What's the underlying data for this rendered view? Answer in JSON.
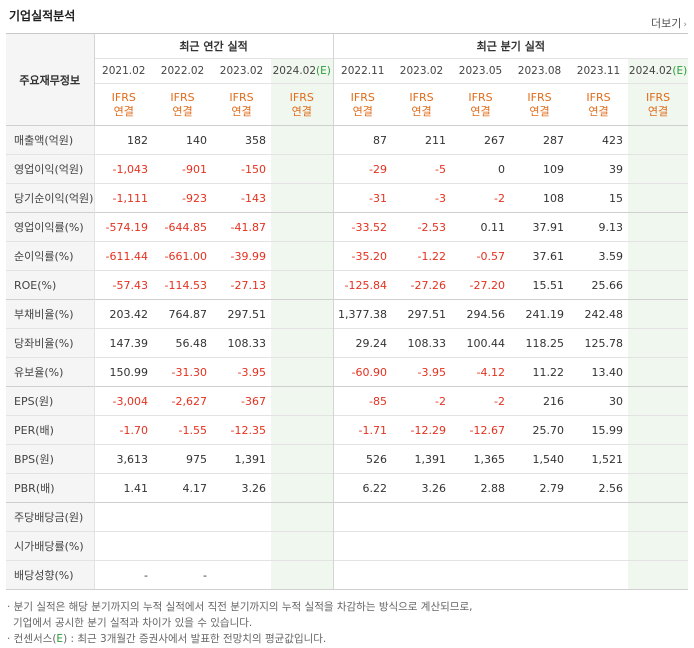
{
  "title": "기업실적분석",
  "more_label": "더보기",
  "header": {
    "row_label": "주요재무정보",
    "annual_label": "최근 연간 실적",
    "quarter_label": "최근 분기 실적",
    "annual_periods": [
      "2021.02",
      "2022.02",
      "2023.02",
      "2024.02"
    ],
    "quarter_periods": [
      "2022.11",
      "2023.02",
      "2023.05",
      "2023.08",
      "2023.11",
      "2024.02"
    ],
    "estimate_mark": "(E)",
    "ifrs_line1": "IFRS",
    "ifrs_line2": "연결"
  },
  "rows": [
    {
      "label": "매출액(억원)",
      "values": [
        "182",
        "140",
        "358",
        "",
        "87",
        "211",
        "267",
        "287",
        "423",
        ""
      ]
    },
    {
      "label": "영업이익(억원)",
      "values": [
        "-1,043",
        "-901",
        "-150",
        "",
        "-29",
        "-5",
        "0",
        "109",
        "39",
        ""
      ]
    },
    {
      "label": "당기순이익(억원)",
      "values": [
        "-1,111",
        "-923",
        "-143",
        "",
        "-31",
        "-3",
        "-2",
        "108",
        "15",
        ""
      ]
    },
    {
      "label": "영업이익률(%)",
      "values": [
        "-574.19",
        "-644.85",
        "-41.87",
        "",
        "-33.52",
        "-2.53",
        "0.11",
        "37.91",
        "9.13",
        ""
      ]
    },
    {
      "label": "순이익률(%)",
      "values": [
        "-611.44",
        "-661.00",
        "-39.99",
        "",
        "-35.20",
        "-1.22",
        "-0.57",
        "37.61",
        "3.59",
        ""
      ]
    },
    {
      "label": "ROE(%)",
      "values": [
        "-57.43",
        "-114.53",
        "-27.13",
        "",
        "-125.84",
        "-27.26",
        "-27.20",
        "15.51",
        "25.66",
        ""
      ]
    },
    {
      "label": "부채비율(%)",
      "values": [
        "203.42",
        "764.87",
        "297.51",
        "",
        "1,377.38",
        "297.51",
        "294.56",
        "241.19",
        "242.48",
        ""
      ]
    },
    {
      "label": "당좌비율(%)",
      "values": [
        "147.39",
        "56.48",
        "108.33",
        "",
        "29.24",
        "108.33",
        "100.44",
        "118.25",
        "125.78",
        ""
      ]
    },
    {
      "label": "유보율(%)",
      "values": [
        "150.99",
        "-31.30",
        "-3.95",
        "",
        "-60.90",
        "-3.95",
        "-4.12",
        "11.22",
        "13.40",
        ""
      ]
    },
    {
      "label": "EPS(원)",
      "values": [
        "-3,004",
        "-2,627",
        "-367",
        "",
        "-85",
        "-2",
        "-2",
        "216",
        "30",
        ""
      ]
    },
    {
      "label": "PER(배)",
      "values": [
        "-1.70",
        "-1.55",
        "-12.35",
        "",
        "-1.71",
        "-12.29",
        "-12.67",
        "25.70",
        "15.99",
        ""
      ]
    },
    {
      "label": "BPS(원)",
      "values": [
        "3,613",
        "975",
        "1,391",
        "",
        "526",
        "1,391",
        "1,365",
        "1,540",
        "1,521",
        ""
      ]
    },
    {
      "label": "PBR(배)",
      "values": [
        "1.41",
        "4.17",
        "3.26",
        "",
        "6.22",
        "3.26",
        "2.88",
        "2.79",
        "2.56",
        ""
      ]
    },
    {
      "label": "주당배당금(원)",
      "values": [
        "",
        "",
        "",
        "",
        "",
        "",
        "",
        "",
        "",
        ""
      ]
    },
    {
      "label": "시가배당률(%)",
      "values": [
        "",
        "",
        "",
        "",
        "",
        "",
        "",
        "",
        "",
        ""
      ]
    },
    {
      "label": "배당성향(%)",
      "values": [
        "-",
        "-",
        "",
        "",
        "",
        "",
        "",
        "",
        "",
        ""
      ]
    }
  ],
  "notes": [
    "· 분기 실적은 해당 분기까지의 누적 실적에서 직전 분기까지의 누적 실적을 차감하는 방식으로 계산되므로,",
    "  기업에서 공시한 분기 실적과 차이가 있을 수 있습니다.",
    "· 컨센서스(E) : 최근 3개월간 증권사에서 발표한 전망치의 평균값입니다."
  ],
  "colors": {
    "negative": "#e5311f",
    "ifrs": "#e06b1a",
    "estimate_bg": "#f0f7ee",
    "estimate_mark": "#2a9d3a"
  }
}
